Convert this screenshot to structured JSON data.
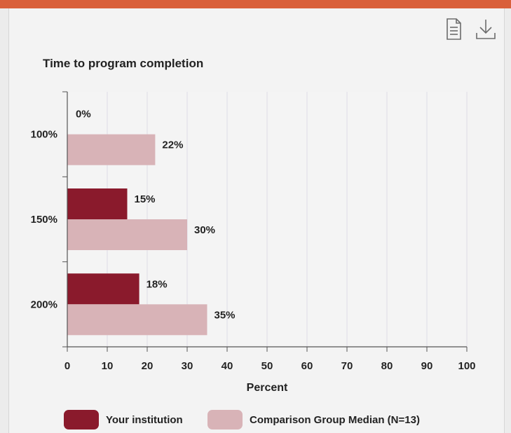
{
  "toolbar": {
    "document_icon": "document-icon",
    "download_icon": "download-icon"
  },
  "colors": {
    "accent_bar": "#d9603b",
    "your_institution": "#8a1a2c",
    "comparison": "#d8b3b7"
  },
  "chart_data": {
    "type": "bar",
    "orientation": "horizontal",
    "title": "Time to program completion",
    "xlabel": "Percent",
    "ylabel": "",
    "categories": [
      "100%",
      "150%",
      "200%"
    ],
    "xlim": [
      0,
      100
    ],
    "x_ticks": [
      "0",
      "10",
      "20",
      "30",
      "40",
      "50",
      "60",
      "70",
      "80",
      "90",
      "100"
    ],
    "grid": "vertical",
    "legend_position": "bottom",
    "series": [
      {
        "name": "Your institution",
        "values": [
          0,
          15,
          18
        ],
        "labels": [
          "0%",
          "15%",
          "18%"
        ]
      },
      {
        "name": "Comparison Group Median (N=13)",
        "values": [
          22,
          30,
          35
        ],
        "labels": [
          "22%",
          "30%",
          "35%"
        ]
      }
    ]
  }
}
